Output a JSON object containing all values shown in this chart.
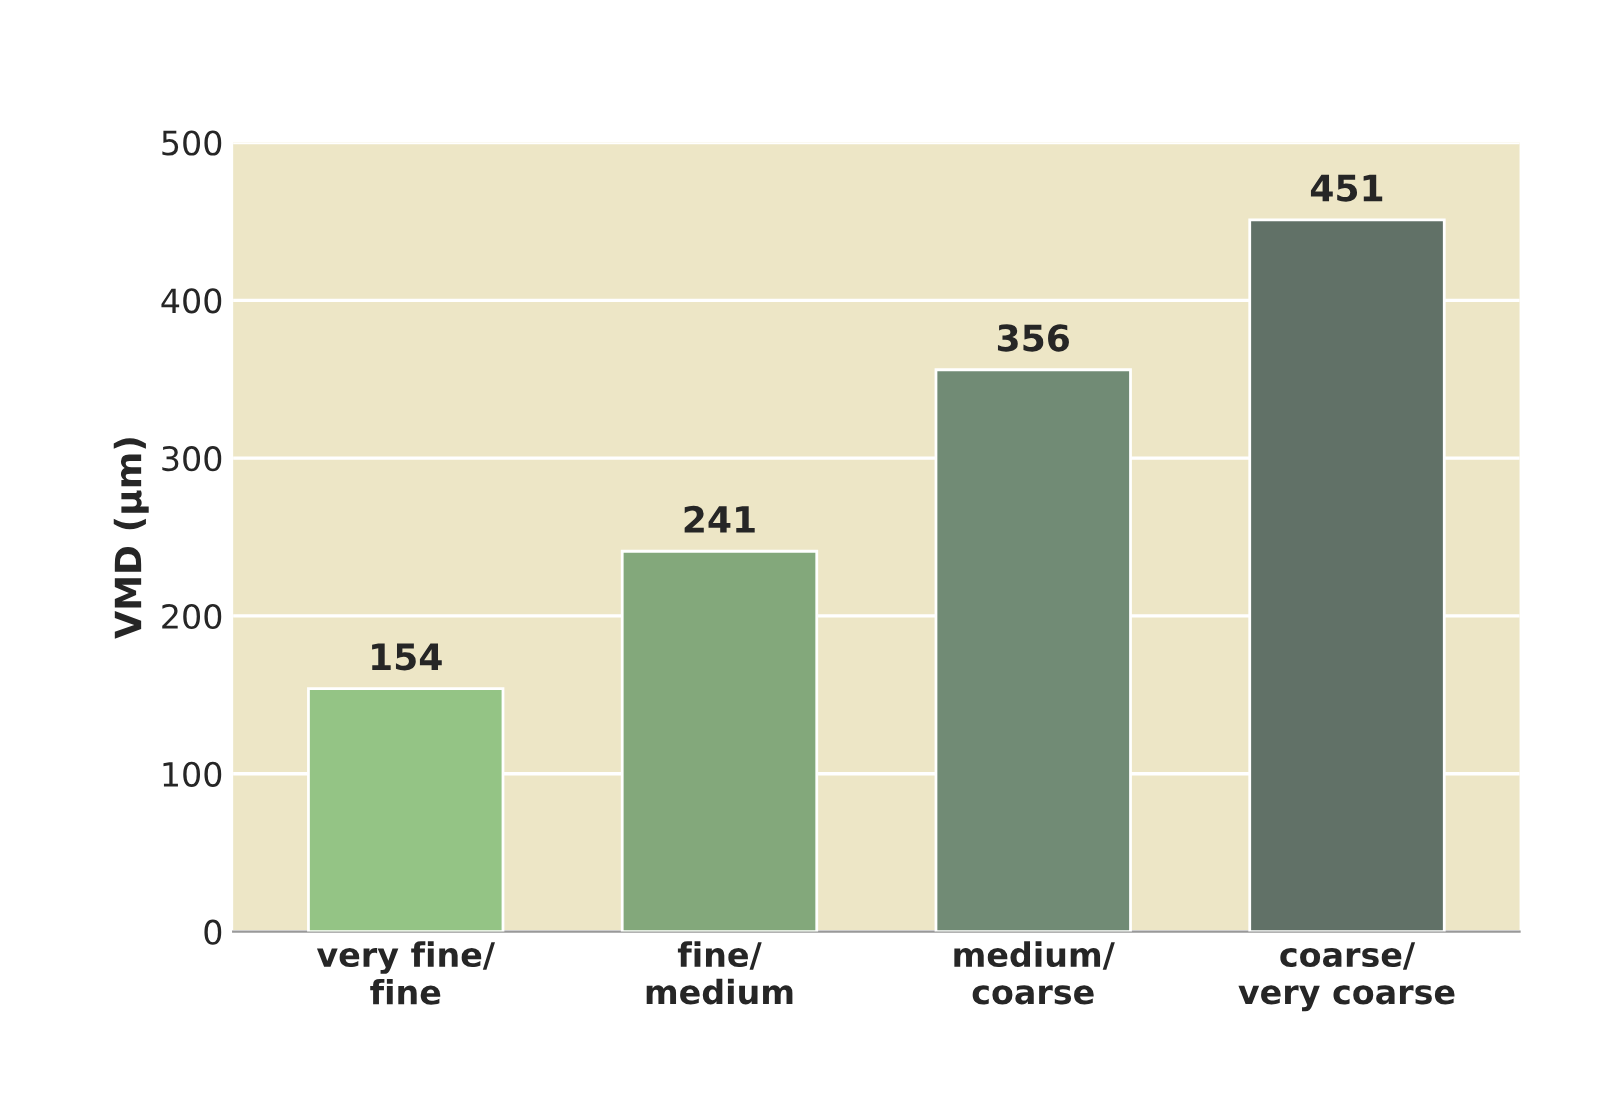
{
  "chart_data": {
    "type": "bar",
    "ylabel": "VMD (µm)",
    "categories": [
      "very fine/\nfine",
      "fine/\nmedium",
      "medium/\ncoarse",
      "coarse/\nvery coarse"
    ],
    "values": [
      154,
      241,
      356,
      451
    ],
    "colors": [
      "#8fcf7a",
      "#7eb074",
      "#6d8f72",
      "#5e7466"
    ],
    "ylim": [
      0,
      500
    ],
    "yticks": [
      0,
      100,
      200,
      300,
      400,
      500
    ],
    "grid": "y",
    "data_labels": true
  }
}
